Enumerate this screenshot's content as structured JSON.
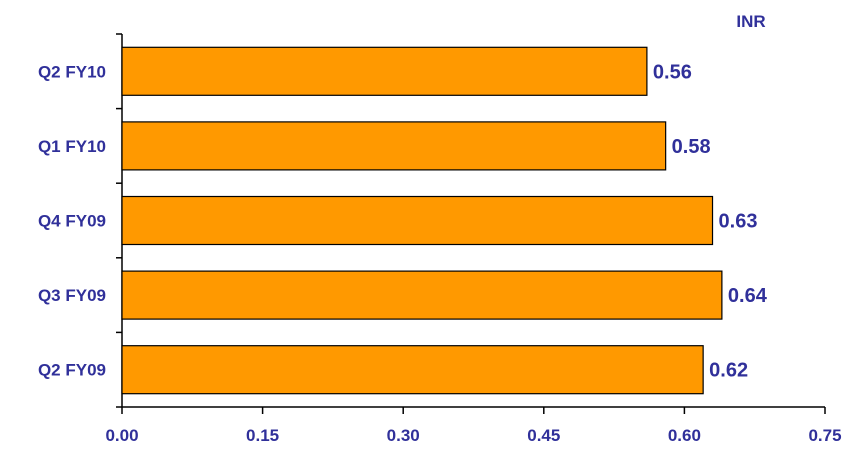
{
  "chart_data": {
    "type": "bar",
    "orientation": "horizontal",
    "unit": "INR",
    "categories": [
      "Q2 FY10",
      "Q1 FY10",
      "Q4 FY09",
      "Q3 FY09",
      "Q2 FY09"
    ],
    "values": [
      0.56,
      0.58,
      0.63,
      0.64,
      0.62
    ],
    "value_labels": [
      "0.56",
      "0.58",
      "0.63",
      "0.64",
      "0.62"
    ],
    "xlim": [
      0,
      0.75
    ],
    "x_ticks": [
      "0.00",
      "0.15",
      "0.30",
      "0.45",
      "0.60",
      "0.75"
    ],
    "x_tick_values": [
      0,
      0.15,
      0.3,
      0.45,
      0.6,
      0.75
    ],
    "grid": false,
    "legend": "none",
    "colors": {
      "bar_fill": "#ff9900",
      "bar_stroke": "#000000",
      "text": "#30309a",
      "axis": "#000000"
    }
  }
}
